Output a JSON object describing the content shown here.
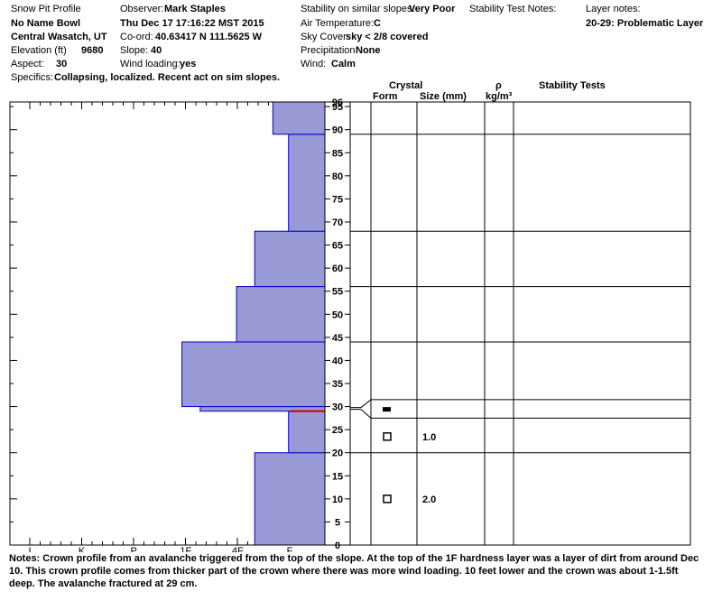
{
  "header": {
    "col1": {
      "title": "Snow Pit Profile",
      "location": "No Name Bowl",
      "region": "Central Wasatch, UT",
      "elevation_label": "Elevation (ft)",
      "elevation_value": "9680",
      "aspect_label": "Aspect:",
      "aspect_value": "30",
      "specifics_label": "Specifics:",
      "specifics_value": "Collapsing, localized. Recent act on sim slopes."
    },
    "col2": {
      "observer_label": "Observer:",
      "observer_value": "Mark Staples",
      "datetime": "Thu Dec 17 17:16:22 MST 2015",
      "coord_label": "Co-ord:",
      "coord_value": "40.63417 N 111.5625 W",
      "slope_label": "Slope:",
      "slope_value": "40",
      "wind_loading_label": "Wind loading:",
      "wind_loading_value": "yes"
    },
    "col3": {
      "stability_label": "Stability on similar slopes:",
      "stability_value": "Very Poor",
      "air_temp_label": "Air Temperature:",
      "air_temp_value": "C",
      "sky_label": "Sky Cover:",
      "sky_value": "sky < 2/8 covered",
      "precip_label": "Precipitation:",
      "precip_value": "None",
      "wind_label": "Wind:",
      "wind_value": "Calm"
    },
    "col4": {
      "stability_notes_label": "Stability Test Notes:"
    },
    "col5": {
      "layer_notes_label": "Layer notes:",
      "layer_notes_value": "20-29: Problematic Layer"
    }
  },
  "table_headers": {
    "crystal": "Crystal",
    "form": "Form",
    "size": "Size (mm)",
    "rho": "ρ",
    "density_unit": "kg/m³",
    "stability_tests": "Stability Tests"
  },
  "notes": {
    "label": "Notes:",
    "text": "Crown profile from an avalanche triggered from the top of the slope. At the top of the 1F hardness layer was a layer of dirt from around Dec 10. This crown profile comes from thicker part of the crown where there was more wind loading. 10 feet lower and the crown was about 1-1.5ft deep. The avalanche fractured at 29 cm."
  },
  "colors": {
    "fill": "#9999d6",
    "edge": "#0000cc",
    "weak_layer": "#cc0000"
  },
  "chart_data": {
    "type": "bar",
    "orientation": "horizontal",
    "x_axis": {
      "ticks": [
        "I",
        "K",
        "P",
        "1F",
        "4F",
        "F"
      ],
      "direction": "right-to-left",
      "scale": [
        0,
        6
      ]
    },
    "y_axis": {
      "ylim": [
        0,
        96
      ],
      "ticks": [
        0,
        5,
        10,
        15,
        20,
        25,
        30,
        35,
        40,
        45,
        50,
        55,
        60,
        65,
        70,
        75,
        80,
        85,
        90,
        95,
        96
      ]
    },
    "layers": [
      {
        "bottom": 0,
        "top": 20,
        "hardness": 1.35
      },
      {
        "bottom": 20,
        "top": 29,
        "hardness": 0.7
      },
      {
        "bottom": 29,
        "top": 30,
        "hardness": 2.4
      },
      {
        "bottom": 30,
        "top": 44,
        "hardness": 2.75
      },
      {
        "bottom": 44,
        "top": 56,
        "hardness": 1.7
      },
      {
        "bottom": 56,
        "top": 68,
        "hardness": 1.35
      },
      {
        "bottom": 68,
        "top": 89,
        "hardness": 0.7
      },
      {
        "bottom": 89,
        "top": 96,
        "hardness": 1.0
      }
    ],
    "weak_layer_height": 29,
    "layer_boundaries": [
      20,
      29,
      30,
      44,
      56,
      68,
      89
    ],
    "crystals": [
      {
        "height": 29.5,
        "form": "filled-rect",
        "size": ""
      },
      {
        "height": 23.5,
        "form": "square",
        "size": "1.0"
      },
      {
        "height": 10,
        "form": "square",
        "size": "2.0"
      }
    ]
  }
}
